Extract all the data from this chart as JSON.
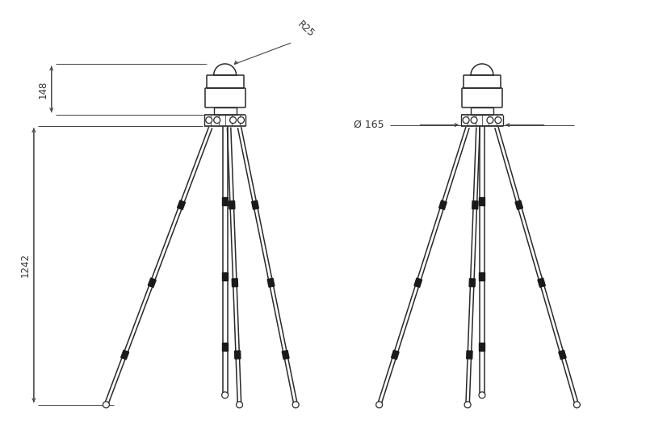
{
  "bg_color": "#ffffff",
  "line_color": "#2a2a2a",
  "dim_color": "#444444",
  "text_color": "#333333",
  "fig_width": 8.0,
  "fig_height": 5.37,
  "dpi": 100,
  "dim_148_label": "148",
  "dim_1242_label": "1242",
  "dim_r25_label": "R25",
  "dim_d165_label": "Ø 165"
}
